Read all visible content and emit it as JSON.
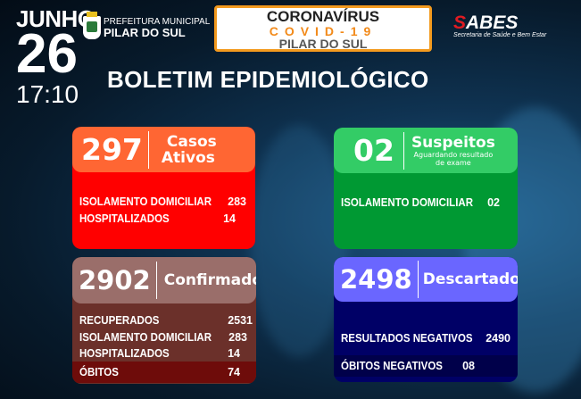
{
  "header": {
    "month": "JUNHO",
    "day": "26",
    "time": "17:10",
    "prefeitura_line1": "PREFEITURA MUNICIPAL",
    "prefeitura_line2": "PILAR DO SUL",
    "banner_line1": "CORONAVÍRUS",
    "banner_line2": "COVID-19",
    "banner_line3": "PILAR DO SUL",
    "sabes_prefix": "S",
    "sabes_name": "ABES",
    "sabes_subtitle": "Secretaria de Saúde e Bem Estar",
    "title": "BOLETIM EPIDEMIOLÓGICO"
  },
  "colors": {
    "accent_orange": "#f39a1e",
    "ativos_head": "#ff6633",
    "ativos_body": "#ff0000",
    "suspeitos_head": "#33cc66",
    "suspeitos_body": "#009933",
    "confirmados_head": "#9a6e6a",
    "confirmados_body": "#6b302a",
    "obitos_row": "#6e0c0a",
    "descartados_head": "#6a66ff",
    "descartados_body": "#000066"
  },
  "cards": {
    "ativos": {
      "value": "297",
      "label1": "Casos",
      "label2": "Ativos",
      "rows": [
        {
          "label": "ISOLAMENTO DOMICILIAR",
          "value": "283"
        },
        {
          "label": "HOSPITALIZADOS",
          "value": "14"
        }
      ]
    },
    "suspeitos": {
      "value": "02",
      "label": "Suspeitos",
      "sub1": "Aguardando resultado",
      "sub2": "de exame",
      "rows": [
        {
          "label": "ISOLAMENTO DOMICILIAR",
          "value": "02"
        }
      ]
    },
    "confirmados": {
      "value": "2902",
      "label": "Confirmados",
      "rows": [
        {
          "label": "RECUPERADOS",
          "value": "2531"
        },
        {
          "label": "ISOLAMENTO DOMICILIAR",
          "value": "283"
        },
        {
          "label": "HOSPITALIZADOS",
          "value": "14"
        },
        {
          "label": "ÓBITOS",
          "value": "74"
        }
      ]
    },
    "descartados": {
      "value": "2498",
      "label": "Descartados",
      "rows": [
        {
          "label": "RESULTADOS NEGATIVOS",
          "value": "2490"
        },
        {
          "label": "ÓBITOS NEGATIVOS",
          "value": "08"
        }
      ]
    }
  }
}
